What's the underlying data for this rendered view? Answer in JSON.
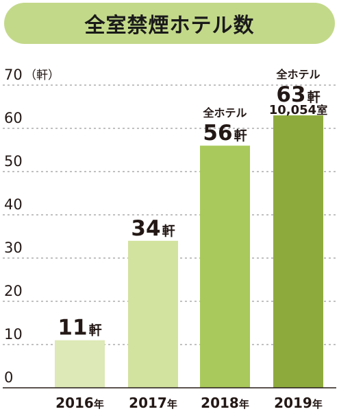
{
  "chart_data": {
    "type": "bar",
    "title": "全室禁煙ホテル数",
    "unit_label": "（軒）",
    "categories": [
      {
        "year": "2016",
        "suffix": "年"
      },
      {
        "year": "2017",
        "suffix": "年"
      },
      {
        "year": "2018",
        "suffix": "年"
      },
      {
        "year": "2019",
        "suffix": "年"
      }
    ],
    "values": [
      11,
      34,
      56,
      63
    ],
    "value_unit": "軒",
    "bar_notes": [
      "",
      "",
      "全ホテル",
      "全ホテル"
    ],
    "rooms_2019": {
      "number": "10,054",
      "unit": "室"
    },
    "ylim": [
      0,
      70
    ],
    "yticks": [
      0,
      10,
      20,
      30,
      40,
      50,
      60,
      70
    ],
    "grid": true,
    "bar_colors": [
      "#dde9b6",
      "#d2e39f",
      "#a9c95c",
      "#8dab3c"
    ],
    "banner_color": "#c3d98a"
  }
}
